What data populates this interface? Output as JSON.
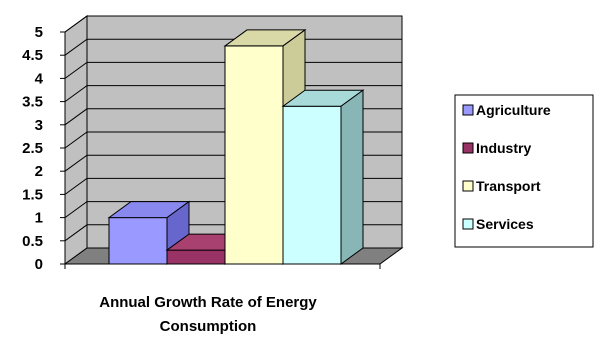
{
  "chart_data": {
    "type": "bar",
    "three_d": true,
    "categories": [
      "Agriculture",
      "Industry",
      "Transport",
      "Services"
    ],
    "values": [
      1.0,
      0.3,
      4.7,
      3.4
    ],
    "xlabel_lines": [
      "Annual Growth Rate of Energy",
      "Consumption"
    ],
    "ylim": [
      0,
      5
    ],
    "yticks": [
      "0",
      "0.5",
      "1",
      "1.5",
      "2",
      "2.5",
      "3",
      "3.5",
      "4",
      "4.5",
      "5"
    ],
    "grid": true,
    "legend_position": "right",
    "series": [
      {
        "name": "Agriculture",
        "value": 1.0,
        "color": "#9999ff",
        "side": "#6666cc",
        "top": "#8888ee"
      },
      {
        "name": "Industry",
        "value": 0.3,
        "color": "#993366",
        "side": "#6e2249",
        "top": "#a8416f"
      },
      {
        "name": "Transport",
        "value": 4.7,
        "color": "#ffffcc",
        "side": "#cccc99",
        "top": "#d9d9a8"
      },
      {
        "name": "Services",
        "value": 3.4,
        "color": "#ccffff",
        "side": "#88b6b6",
        "top": "#a8dada"
      }
    ],
    "colors": {
      "wall": "#c0c0c0",
      "floor": "#808080",
      "gridline": "#000000"
    }
  }
}
